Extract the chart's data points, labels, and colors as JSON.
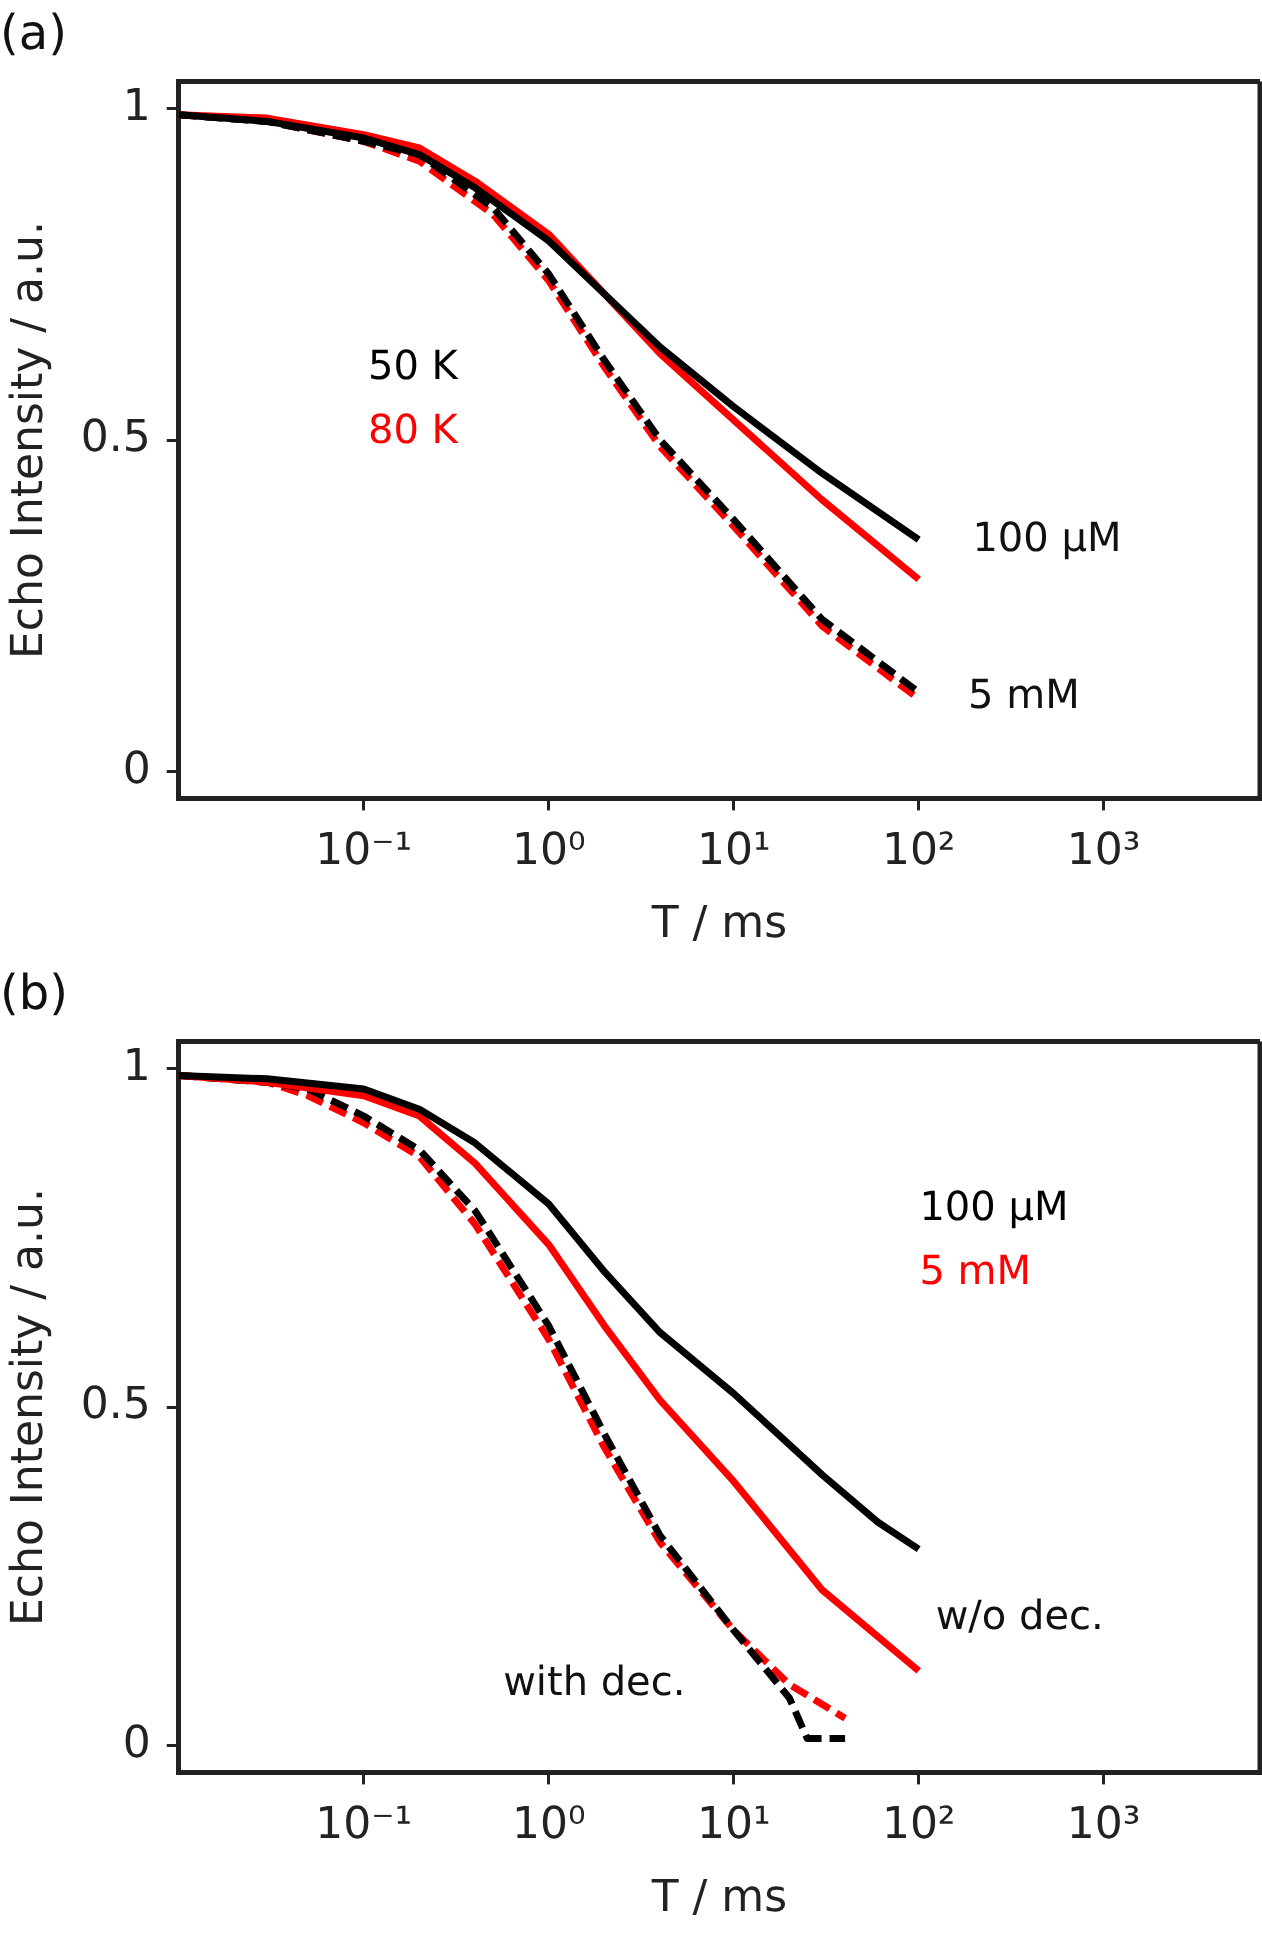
{
  "chart_data": [
    {
      "type": "line",
      "title": "(a)",
      "xlabel": "T / ms",
      "ylabel": "Echo Intensity / a.u.",
      "log": "x",
      "xlim": [
        0.01,
        7000
      ],
      "xticks": [
        {
          "value": 0.1,
          "label": "10⁻¹"
        },
        {
          "value": 1,
          "label": "10⁰"
        },
        {
          "value": 10,
          "label": "10¹"
        },
        {
          "value": 100,
          "label": "10²"
        },
        {
          "value": 1000,
          "label": "10³"
        }
      ],
      "ylim": [
        -0.04,
        1.04
      ],
      "yticks": [
        0,
        0.5,
        1
      ],
      "grid": false,
      "legend": "left",
      "marker": "none",
      "series": [
        {
          "name": "50 K",
          "color": "#000000",
          "x": [
            0.01,
            0.03,
            0.1,
            0.2,
            0.4,
            1,
            2,
            4,
            10,
            30,
            100
          ],
          "values": [
            0.99,
            0.98,
            0.955,
            0.93,
            0.88,
            0.8,
            0.72,
            0.64,
            0.55,
            0.45,
            0.35
          ]
        },
        {
          "name": "80 K",
          "color": "#ff0000",
          "x": [
            0.01,
            0.03,
            0.1,
            0.2,
            0.4,
            1,
            2,
            4,
            10,
            30,
            100
          ],
          "values": [
            0.99,
            0.985,
            0.96,
            0.94,
            0.89,
            0.81,
            0.72,
            0.63,
            0.53,
            0.41,
            0.29
          ]
        },
        {
          "color": "#000000",
          "line_style": "dashed",
          "x": [
            0.01,
            0.03,
            0.1,
            0.2,
            0.5,
            1,
            2,
            4,
            10,
            30,
            100
          ],
          "values": [
            0.99,
            0.98,
            0.95,
            0.93,
            0.85,
            0.75,
            0.62,
            0.5,
            0.38,
            0.23,
            0.12
          ]
        },
        {
          "color": "#ff0000",
          "line_style": "dashed",
          "x": [
            0.01,
            0.03,
            0.1,
            0.2,
            0.5,
            1,
            2,
            4,
            10,
            30,
            100
          ],
          "values": [
            0.99,
            0.98,
            0.95,
            0.92,
            0.84,
            0.74,
            0.61,
            0.49,
            0.37,
            0.22,
            0.11
          ]
        }
      ],
      "annotations": [
        "100 µM",
        "5 mM"
      ]
    },
    {
      "type": "line",
      "title": "(b)",
      "xlabel": "T / ms",
      "ylabel": "Echo Intensity / a.u.",
      "log": "x",
      "xlim": [
        0.01,
        7000
      ],
      "xticks": [
        {
          "value": 0.1,
          "label": "10⁻¹"
        },
        {
          "value": 1,
          "label": "10⁰"
        },
        {
          "value": 10,
          "label": "10¹"
        },
        {
          "value": 100,
          "label": "10²"
        },
        {
          "value": 1000,
          "label": "10³"
        }
      ],
      "ylim": [
        -0.04,
        1.04
      ],
      "yticks": [
        0,
        0.5,
        1
      ],
      "grid": false,
      "legend": "top right",
      "marker": "none",
      "series": [
        {
          "name": "100 µM",
          "color": "#000000",
          "x": [
            0.01,
            0.03,
            0.1,
            0.2,
            0.4,
            1,
            2,
            4,
            10,
            30,
            60,
            100
          ],
          "values": [
            0.99,
            0.985,
            0.97,
            0.94,
            0.89,
            0.8,
            0.7,
            0.61,
            0.52,
            0.4,
            0.33,
            0.29
          ]
        },
        {
          "name": "5 mM",
          "color": "#ff0000",
          "x": [
            0.01,
            0.03,
            0.1,
            0.2,
            0.4,
            1,
            2,
            4,
            10,
            30,
            100
          ],
          "values": [
            0.99,
            0.98,
            0.96,
            0.93,
            0.86,
            0.74,
            0.62,
            0.51,
            0.39,
            0.23,
            0.11
          ]
        },
        {
          "color": "#000000",
          "line_style": "dashed",
          "x": [
            0.01,
            0.03,
            0.05,
            0.1,
            0.2,
            0.4,
            1,
            2,
            4,
            10,
            20,
            25,
            40
          ],
          "values": [
            0.99,
            0.98,
            0.97,
            0.93,
            0.88,
            0.79,
            0.62,
            0.46,
            0.31,
            0.17,
            0.07,
            0.01,
            0.01
          ]
        },
        {
          "color": "#ff0000",
          "line_style": "dashed",
          "x": [
            0.01,
            0.03,
            0.05,
            0.1,
            0.2,
            0.4,
            1,
            2,
            4,
            10,
            20,
            40
          ],
          "values": [
            0.99,
            0.98,
            0.96,
            0.92,
            0.87,
            0.77,
            0.6,
            0.44,
            0.3,
            0.17,
            0.09,
            0.04
          ]
        }
      ],
      "annotations": [
        "w/o dec.",
        "with dec."
      ]
    }
  ]
}
